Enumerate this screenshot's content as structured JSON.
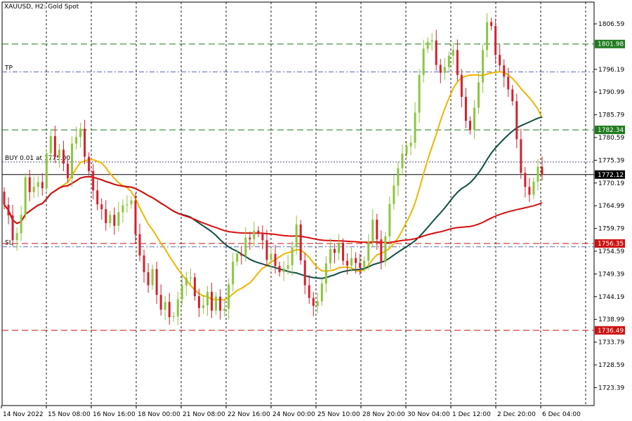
{
  "chart_title": "XAUUSD, H2:  Gold Spot",
  "chart_data": {
    "type": "candlestick",
    "symbol": "XAUUSD",
    "timeframe": "H2",
    "description": "Gold Spot",
    "y_ticks": [
      "1806.59",
      "1796.19",
      "1790.99",
      "1785.79",
      "1780.59",
      "1775.39",
      "1770.19",
      "1764.99",
      "1759.79",
      "1754.59",
      "1749.39",
      "1744.19",
      "1738.99",
      "1733.79",
      "1728.59",
      "1723.39"
    ],
    "ylim": [
      1720.0,
      1810.0
    ],
    "x_ticks": [
      "14 Nov 2022",
      "15 Nov 08:00",
      "16 Nov 16:00",
      "18 Nov 00:00",
      "21 Nov 08:00",
      "22 Nov 16:00",
      "24 Nov 00:00",
      "25 Nov 10:00",
      "28 Nov 20:00",
      "30 Nov 04:00",
      "1 Dec 12:00",
      "2 Dec 20:00",
      "6 Dec 04:00"
    ],
    "horizontal_lines": [
      {
        "label": "TP",
        "price": 1795.6,
        "style": "dashdot",
        "color": "#5b6bb0"
      },
      {
        "label": "BUY 0.01 at 1775.00",
        "price": 1775.0,
        "style": "dotted",
        "color": "#4a5080"
      },
      {
        "label": "SL",
        "price": 1755.6,
        "style": "dashdot",
        "color": "#5b6bb0"
      },
      {
        "label": "",
        "price": 1801.98,
        "badge": "1801.98",
        "style": "dashed",
        "color": "#1e7a1e",
        "badge_color": "#1e7a1e"
      },
      {
        "label": "",
        "price": 1782.34,
        "badge": "1782.34",
        "style": "dashed",
        "color": "#1e7a1e",
        "badge_color": "#1e7a1e"
      },
      {
        "label": "",
        "price": 1772.12,
        "badge": "1772.12",
        "style": "solid",
        "color": "#000000",
        "badge_color": "#000000"
      },
      {
        "label": "",
        "price": 1756.35,
        "badge": "1756.35",
        "style": "dashed",
        "color": "#cc1111",
        "badge_color": "#cc1111"
      },
      {
        "label": "",
        "price": 1736.49,
        "badge": "1736.49",
        "style": "dashed",
        "color": "#cc1111",
        "badge_color": "#cc1111"
      }
    ],
    "bull_color": "#8cc63f",
    "bear_color": "#d2222d",
    "ma_colors": {
      "fast": "#f2b400",
      "medium": "#0f4d45",
      "slow": "#d80f0f"
    },
    "closes": [
      1765.2,
      1762.8,
      1757.1,
      1758.7,
      1762.9,
      1771.5,
      1768.1,
      1769.3,
      1770.4,
      1769.0,
      1777.0,
      1780.9,
      1776.1,
      1777.8,
      1774.6,
      1771.3,
      1779.2,
      1780.7,
      1782.6,
      1776.2,
      1772.9,
      1768.5,
      1765.3,
      1764.2,
      1761.0,
      1762.9,
      1760.4,
      1763.5,
      1765.1,
      1765.3,
      1766.2,
      1758.5,
      1753.6,
      1749.8,
      1746.8,
      1750.5,
      1744.6,
      1741.2,
      1743.0,
      1739.5,
      1739.7,
      1743.6,
      1746.8,
      1748.5,
      1748.6,
      1744.3,
      1741.6,
      1742.2,
      1745.3,
      1741.0,
      1744.2,
      1741.0,
      1741.4,
      1747.0,
      1752.2,
      1754.0,
      1753.6,
      1757.7,
      1757.3,
      1759.3,
      1758.8,
      1757.1,
      1752.6,
      1754.0,
      1751.2,
      1749.8,
      1750.6,
      1751.4,
      1755.5,
      1760.7,
      1752.5,
      1746.8,
      1743.9,
      1742.1,
      1743.1,
      1747.2,
      1751.8,
      1755.1,
      1754.2,
      1756.5,
      1752.4,
      1751.3,
      1753.0,
      1751.9,
      1750.8,
      1752.4,
      1756.8,
      1761.8,
      1757.3,
      1752.1,
      1758.0,
      1765.4,
      1769.6,
      1773.6,
      1776.9,
      1778.6,
      1779.4,
      1786.3,
      1794.9,
      1800.9,
      1802.5,
      1802.8,
      1797.2,
      1795.4,
      1796.7,
      1799.3,
      1800.6,
      1794.9,
      1789.9,
      1784.4,
      1782.3,
      1787.4,
      1793.2,
      1800.6,
      1807.0,
      1806.1,
      1799.5,
      1797.1,
      1794.5,
      1791.6,
      1788.9,
      1780.2,
      1772.5,
      1769.3,
      1767.5,
      1770.5,
      1773.9,
      1772.1
    ]
  }
}
